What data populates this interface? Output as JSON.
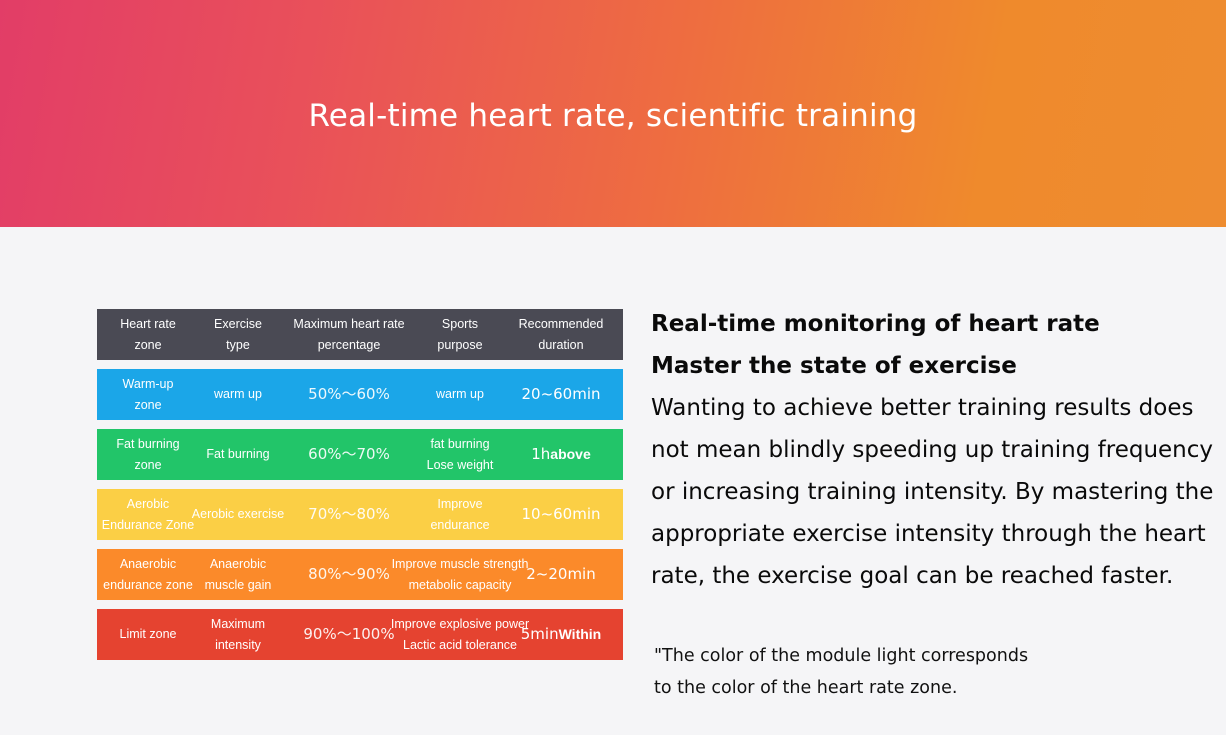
{
  "banner": {
    "title": "Real-time heart rate, scientific training"
  },
  "table": {
    "headers": [
      [
        "Heart rate",
        "zone"
      ],
      [
        "Exercise",
        "type"
      ],
      [
        "Maximum heart rate",
        "percentage"
      ],
      [
        "Sports",
        "purpose"
      ],
      [
        "Recommended",
        "duration"
      ]
    ],
    "header_color": "#4a4a54",
    "rows": [
      {
        "color": "#1ba6e8",
        "zone": [
          "Warm-up",
          "zone"
        ],
        "type": [
          "warm up"
        ],
        "percent": "50%～60%",
        "purpose": [
          "warm up"
        ],
        "duration": "20~60min",
        "duration_suffix": ""
      },
      {
        "color": "#22c569",
        "zone": [
          "Fat burning",
          "zone"
        ],
        "type": [
          "Fat burning"
        ],
        "percent": "60%～70%",
        "purpose": [
          "fat burning",
          "Lose weight"
        ],
        "duration": "1h",
        "duration_suffix": "above"
      },
      {
        "color": "#fbcf45",
        "zone": [
          "Aerobic",
          "Endurance Zone"
        ],
        "type": [
          "Aerobic exercise"
        ],
        "percent": "70%～80%",
        "purpose": [
          "Improve",
          "endurance"
        ],
        "duration": "10~60min",
        "duration_suffix": ""
      },
      {
        "color": "#fb8a2a",
        "zone": [
          "Anaerobic",
          "endurance zone"
        ],
        "type": [
          "Anaerobic",
          "muscle gain"
        ],
        "percent": "80%～90%",
        "purpose": [
          "Improve muscle strength",
          "metabolic capacity"
        ],
        "duration": "2~20min",
        "duration_suffix": ""
      },
      {
        "color": "#e54330",
        "zone": [
          "Limit zone"
        ],
        "type": [
          "Maximum",
          "intensity"
        ],
        "percent": "90%～100%",
        "purpose": [
          "Improve explosive power",
          "Lactic acid tolerance"
        ],
        "duration": "5min",
        "duration_suffix": "Within"
      }
    ]
  },
  "text": {
    "heading1": "Real-time monitoring of heart rate",
    "heading2": "Master the state of exercise",
    "body": "Wanting to achieve better training results does not mean blindly speeding up training frequency or increasing training intensity. By mastering the appropriate exercise intensity through the heart rate, the exercise goal can be reached faster.",
    "note_line1": "\"The color of the module light corresponds",
    "note_line2": "to the color of the heart rate zone."
  }
}
